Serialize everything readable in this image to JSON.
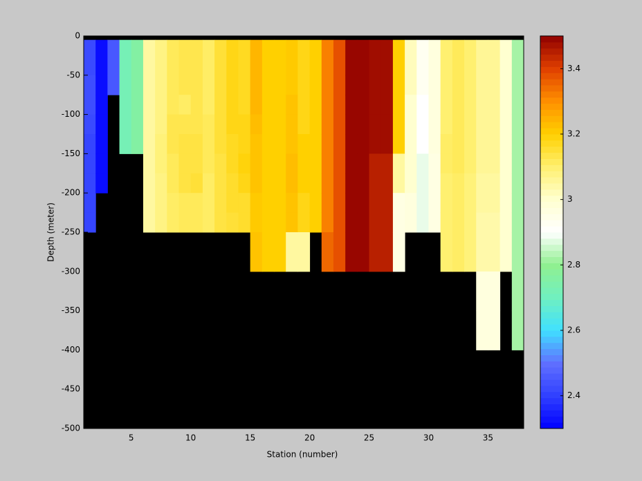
{
  "chart_data": {
    "type": "heatmap",
    "xlabel": "Station (number)",
    "ylabel": "Depth (meter)",
    "x": [
      1,
      2,
      3,
      4,
      5,
      6,
      7,
      8,
      9,
      10,
      11,
      12,
      13,
      14,
      15,
      16,
      17,
      18,
      19,
      20,
      21,
      22,
      23,
      24,
      25,
      26,
      27,
      28,
      29,
      30,
      31,
      32,
      33,
      34,
      35,
      36,
      37,
      38
    ],
    "y": [
      0,
      -5,
      -50,
      -75,
      -100,
      -125,
      -150,
      -175,
      -200,
      -225,
      -250,
      -300,
      -350,
      -400,
      -450,
      -500
    ],
    "z": [
      [
        null,
        2.42,
        2.43,
        2.43,
        2.42,
        2.41,
        2.41,
        2.41,
        2.41,
        2.41,
        null,
        null,
        null,
        null,
        null
      ],
      [
        null,
        2.32,
        2.32,
        2.32,
        2.32,
        2.32,
        2.32,
        2.32,
        null,
        null,
        null,
        null,
        null,
        null,
        null
      ],
      [
        null,
        2.45,
        2.45,
        null,
        null,
        null,
        null,
        null,
        null,
        null,
        null,
        null,
        null,
        null,
        null
      ],
      [
        null,
        2.72,
        2.72,
        2.72,
        2.72,
        2.72,
        null,
        null,
        null,
        null,
        null,
        null,
        null,
        null,
        null
      ],
      [
        null,
        2.76,
        2.76,
        2.76,
        2.76,
        2.76,
        null,
        null,
        null,
        null,
        null,
        null,
        null,
        null,
        null
      ],
      [
        null,
        3.05,
        3.05,
        3.05,
        3.05,
        3.05,
        3.05,
        3.05,
        3.05,
        3.05,
        null,
        null,
        null,
        null,
        null
      ],
      [
        null,
        3.08,
        3.08,
        3.08,
        3.08,
        3.09,
        3.09,
        3.08,
        3.08,
        3.08,
        null,
        null,
        null,
        null,
        null
      ],
      [
        null,
        3.12,
        3.12,
        3.12,
        3.13,
        3.13,
        3.12,
        3.12,
        3.11,
        3.11,
        null,
        null,
        null,
        null,
        null
      ],
      [
        null,
        3.13,
        3.13,
        3.11,
        3.13,
        3.14,
        3.14,
        3.14,
        3.12,
        3.12,
        null,
        null,
        null,
        null,
        null
      ],
      [
        null,
        3.13,
        3.13,
        3.13,
        3.13,
        3.14,
        3.14,
        3.15,
        3.12,
        3.12,
        null,
        null,
        null,
        null,
        null
      ],
      [
        null,
        3.11,
        3.11,
        3.11,
        3.12,
        3.12,
        3.12,
        3.11,
        3.11,
        3.11,
        null,
        null,
        null,
        null,
        null
      ],
      [
        null,
        3.15,
        3.15,
        3.15,
        3.15,
        3.15,
        3.14,
        3.14,
        3.14,
        3.14,
        null,
        null,
        null,
        null,
        null
      ],
      [
        null,
        3.18,
        3.18,
        3.18,
        3.18,
        3.17,
        3.17,
        3.16,
        3.16,
        3.15,
        null,
        null,
        null,
        null,
        null
      ],
      [
        null,
        3.17,
        3.17,
        3.17,
        3.18,
        3.18,
        3.19,
        3.18,
        3.16,
        3.16,
        null,
        null,
        null,
        null,
        null
      ],
      [
        null,
        3.24,
        3.24,
        3.24,
        3.23,
        3.22,
        3.22,
        3.22,
        3.21,
        3.21,
        3.22,
        null,
        null,
        null,
        null
      ],
      [
        null,
        3.2,
        3.2,
        3.2,
        3.2,
        3.2,
        3.2,
        3.2,
        3.2,
        3.2,
        3.2,
        null,
        null,
        null,
        null
      ],
      [
        null,
        3.2,
        3.2,
        3.2,
        3.2,
        3.2,
        3.2,
        3.2,
        3.2,
        3.2,
        3.2,
        null,
        null,
        null,
        null
      ],
      [
        null,
        3.21,
        3.21,
        3.22,
        3.22,
        3.22,
        3.23,
        3.23,
        3.22,
        3.22,
        3.05,
        null,
        null,
        null,
        null
      ],
      [
        null,
        3.18,
        3.18,
        3.18,
        3.18,
        3.2,
        3.2,
        3.2,
        3.18,
        3.18,
        3.05,
        null,
        null,
        null,
        null
      ],
      [
        null,
        3.2,
        3.2,
        3.2,
        3.2,
        3.2,
        3.2,
        3.2,
        3.2,
        3.2,
        null,
        null,
        null,
        null,
        null
      ],
      [
        null,
        3.32,
        3.32,
        3.32,
        3.32,
        3.32,
        3.32,
        3.32,
        3.32,
        3.32,
        3.35,
        null,
        null,
        null,
        null
      ],
      [
        null,
        3.38,
        3.38,
        3.38,
        3.38,
        3.38,
        3.38,
        3.38,
        3.38,
        3.38,
        3.38,
        null,
        null,
        null,
        null
      ],
      [
        null,
        3.49,
        3.49,
        3.49,
        3.49,
        3.49,
        3.49,
        3.49,
        3.49,
        3.49,
        3.49,
        null,
        null,
        null,
        null
      ],
      [
        null,
        3.49,
        3.49,
        3.49,
        3.49,
        3.49,
        3.49,
        3.49,
        3.49,
        3.49,
        3.49,
        null,
        null,
        null,
        null
      ],
      [
        null,
        3.48,
        3.48,
        3.48,
        3.48,
        3.48,
        3.45,
        3.45,
        3.45,
        3.45,
        3.45,
        null,
        null,
        null,
        null
      ],
      [
        null,
        3.48,
        3.48,
        3.48,
        3.48,
        3.48,
        3.45,
        3.45,
        3.45,
        3.45,
        3.45,
        null,
        null,
        null,
        null
      ],
      [
        null,
        3.2,
        3.2,
        3.2,
        3.2,
        3.2,
        3.05,
        3.05,
        2.96,
        2.96,
        2.96,
        null,
        null,
        null,
        null
      ],
      [
        null,
        3.02,
        3.02,
        3.0,
        3.0,
        3.0,
        3.0,
        3.0,
        2.97,
        2.97,
        null,
        null,
        null,
        null,
        null
      ],
      [
        null,
        2.93,
        2.93,
        2.9,
        2.9,
        2.9,
        2.88,
        2.88,
        2.88,
        2.88,
        null,
        null,
        null,
        null,
        null
      ],
      [
        null,
        2.97,
        2.97,
        2.97,
        2.97,
        2.97,
        2.96,
        2.96,
        2.96,
        2.96,
        null,
        null,
        null,
        null,
        null
      ],
      [
        null,
        3.1,
        3.1,
        3.1,
        3.1,
        3.11,
        3.11,
        3.1,
        3.1,
        3.1,
        3.1,
        null,
        null,
        null,
        null
      ],
      [
        null,
        3.12,
        3.12,
        3.12,
        3.12,
        3.12,
        3.12,
        3.11,
        3.11,
        3.11,
        3.11,
        null,
        null,
        null,
        null
      ],
      [
        null,
        3.1,
        3.1,
        3.1,
        3.1,
        3.1,
        3.1,
        3.09,
        3.09,
        3.09,
        3.09,
        null,
        null,
        null,
        null
      ],
      [
        null,
        3.06,
        3.06,
        3.06,
        3.06,
        3.06,
        3.06,
        3.05,
        3.05,
        3.04,
        3.04,
        2.97,
        2.97,
        null,
        null
      ],
      [
        null,
        3.06,
        3.06,
        3.06,
        3.06,
        3.06,
        3.06,
        3.05,
        3.05,
        3.04,
        3.04,
        2.97,
        2.97,
        null,
        null
      ],
      [
        null,
        3.0,
        3.0,
        3.0,
        3.0,
        3.0,
        3.0,
        3.0,
        3.0,
        3.0,
        3.0,
        null,
        null,
        null,
        null
      ],
      [
        null,
        2.82,
        2.82,
        2.82,
        2.82,
        2.82,
        2.82,
        2.82,
        2.82,
        2.82,
        2.82,
        2.82,
        2.82,
        null,
        null
      ]
    ],
    "xlim": [
      1,
      38
    ],
    "ylim": [
      -500,
      0
    ],
    "xticks": [
      5,
      10,
      15,
      20,
      25,
      30,
      35
    ],
    "yticks": [
      0,
      -50,
      -100,
      -150,
      -200,
      -250,
      -300,
      -350,
      -400,
      -450,
      -500
    ],
    "clim": [
      2.3,
      3.5
    ],
    "cticks": [
      2.4,
      2.6,
      2.8,
      3,
      3.2,
      3.4
    ],
    "colormap": [
      "#0000ff",
      "#3040ff",
      "#6070ff",
      "#40e0ff",
      "#70f0c0",
      "#90f090",
      "#ffffff",
      "#ffffd0",
      "#fff070",
      "#ffd000",
      "#ff9000",
      "#e04000",
      "#900000"
    ],
    "nan_color": "#000000"
  }
}
